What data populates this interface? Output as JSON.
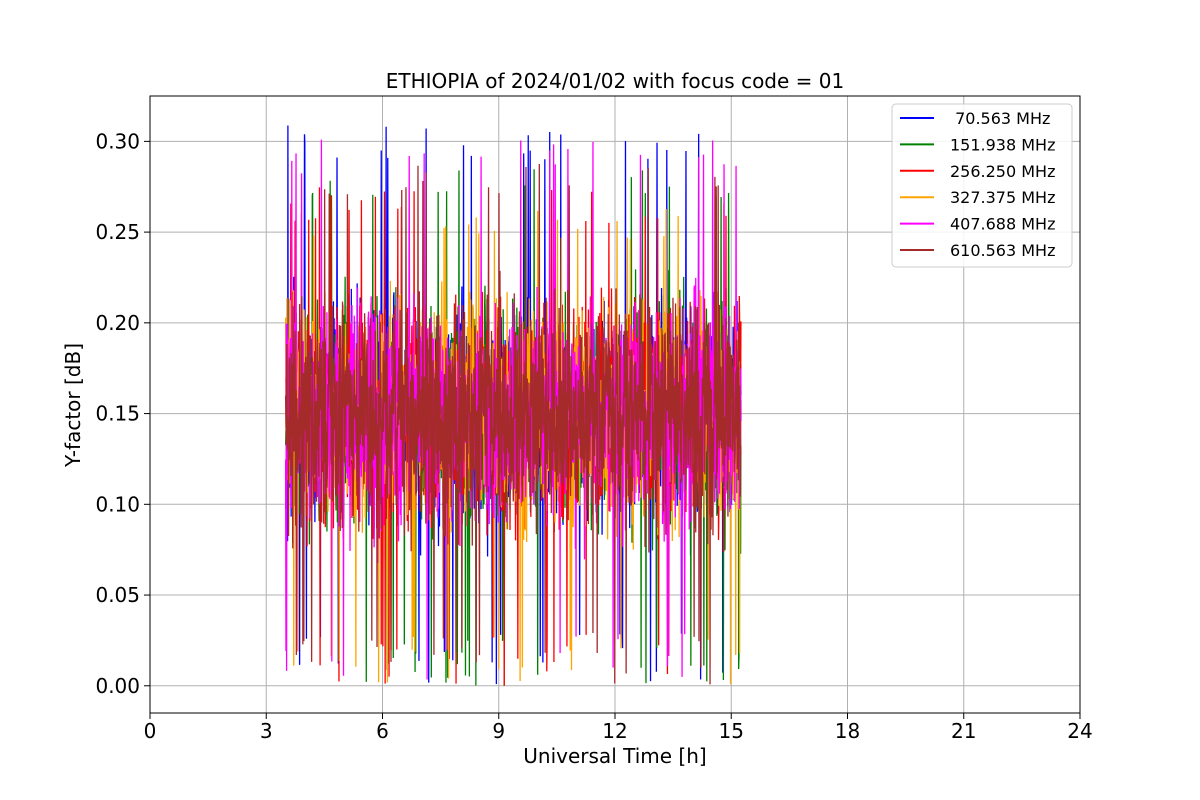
{
  "chart_data": {
    "type": "line",
    "title": "ETHIOPIA of 2024/01/02 with focus code = 01",
    "xlabel": "Universal Time [h]",
    "ylabel": "Y-factor [dB]",
    "xlim": [
      0,
      24
    ],
    "ylim": [
      -0.015,
      0.325
    ],
    "xticks": [
      0,
      3,
      6,
      9,
      12,
      15,
      18,
      21,
      24
    ],
    "xtick_labels": [
      "0",
      "3",
      "6",
      "9",
      "12",
      "15",
      "18",
      "21",
      "24"
    ],
    "yticks": [
      0.0,
      0.05,
      0.1,
      0.15,
      0.2,
      0.25,
      0.3
    ],
    "ytick_labels": [
      "0.00",
      "0.05",
      "0.10",
      "0.15",
      "0.20",
      "0.25",
      "0.30"
    ],
    "grid": true,
    "legend_position": "top-right",
    "time_range": [
      3.5,
      15.25
    ],
    "series": [
      {
        "name": " 70.563 MHz",
        "color": "#0000ff",
        "min": 0.0,
        "max": 0.309,
        "mean": 0.145
      },
      {
        "name": "151.938 MHz",
        "color": "#008000",
        "min": 0.0,
        "max": 0.286,
        "mean": 0.145
      },
      {
        "name": "256.250 MHz",
        "color": "#ff0000",
        "min": 0.0,
        "max": 0.275,
        "mean": 0.145
      },
      {
        "name": "327.375 MHz",
        "color": "#ffa500",
        "min": 0.0,
        "max": 0.266,
        "mean": 0.14
      },
      {
        "name": "407.688 MHz",
        "color": "#ff00ff",
        "min": 0.0,
        "max": 0.302,
        "mean": 0.145
      },
      {
        "name": "610.563 MHz",
        "color": "#a52a2a",
        "min": 0.0,
        "max": 0.29,
        "mean": 0.145
      }
    ]
  }
}
